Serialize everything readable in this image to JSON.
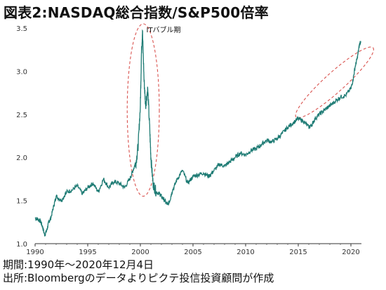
{
  "title": "図表2:NASDAQ総合指数/S&P500倍率",
  "footer": {
    "period": "期間:1990年～2020年12月4日",
    "source": "出所:Bloombergのデータよりピクテ投信投資顧問が作成"
  },
  "chart_data": {
    "type": "line",
    "title": "図表2:NASDAQ総合指数/S&P500倍率",
    "xlabel": "",
    "ylabel": "",
    "xlim": [
      1990,
      2021
    ],
    "ylim": [
      1.0,
      3.5
    ],
    "x_ticks": [
      1990,
      1995,
      2000,
      2005,
      2010,
      2015,
      2020
    ],
    "y_ticks": [
      1.0,
      1.5,
      2.0,
      2.5,
      3.0,
      3.5
    ],
    "y_tick_labels": [
      "1.0",
      "1.5",
      "2.0",
      "2.5",
      "3.0",
      "3.5"
    ],
    "grid": false,
    "line_color": "#1e7b74",
    "series": [
      {
        "x": [
          1990.0,
          1990.3,
          1990.5,
          1990.7,
          1990.9,
          1991.1,
          1991.3,
          1991.5,
          1991.8,
          1992.0,
          1992.5,
          1993.0,
          1993.5,
          1994.0,
          1994.5,
          1995.0,
          1995.5,
          1996.0,
          1996.5,
          1997.0,
          1997.5,
          1998.0,
          1998.5,
          1999.0,
          1999.3,
          1999.6,
          1999.8,
          2000.0,
          2000.1,
          2000.2,
          2000.35,
          2000.5,
          2000.7,
          2000.9,
          2001.0,
          2001.2,
          2001.5,
          2001.8,
          2002.0,
          2002.3,
          2002.6,
          2002.8,
          2003.0,
          2003.5,
          2004.0,
          2004.5,
          2005.0,
          2005.5,
          2006.0,
          2006.5,
          2007.0,
          2007.5,
          2008.0,
          2008.5,
          2009.0,
          2009.5,
          2010.0,
          2010.5,
          2011.0,
          2011.5,
          2012.0,
          2012.5,
          2013.0,
          2013.5,
          2014.0,
          2014.5,
          2015.0,
          2015.5,
          2016.0,
          2016.3,
          2016.6,
          2017.0,
          2017.5,
          2018.0,
          2018.5,
          2019.0,
          2019.5,
          2020.0,
          2020.2,
          2020.4,
          2020.6,
          2020.8,
          2020.93
        ],
        "y": [
          1.3,
          1.28,
          1.26,
          1.2,
          1.1,
          1.15,
          1.25,
          1.3,
          1.45,
          1.55,
          1.5,
          1.6,
          1.62,
          1.67,
          1.58,
          1.65,
          1.7,
          1.6,
          1.75,
          1.65,
          1.72,
          1.7,
          1.65,
          1.75,
          1.85,
          1.95,
          2.15,
          2.6,
          3.2,
          3.47,
          2.9,
          2.6,
          2.8,
          2.3,
          2.0,
          1.7,
          1.6,
          1.58,
          1.55,
          1.5,
          1.45,
          1.5,
          1.6,
          1.75,
          1.85,
          1.7,
          1.78,
          1.8,
          1.82,
          1.78,
          1.85,
          1.92,
          1.9,
          1.95,
          2.0,
          2.05,
          2.03,
          2.08,
          2.1,
          2.15,
          2.2,
          2.18,
          2.22,
          2.28,
          2.35,
          2.4,
          2.45,
          2.42,
          2.35,
          2.38,
          2.45,
          2.5,
          2.55,
          2.6,
          2.65,
          2.7,
          2.72,
          2.8,
          2.9,
          3.05,
          3.15,
          3.3,
          3.35
        ]
      }
    ],
    "annotations": [
      {
        "text": "ITバブル期",
        "x": 2000.3,
        "y": 3.45
      }
    ],
    "highlight_ellipses": [
      {
        "x_range": [
          1998.75,
          2001.8
        ],
        "y_range": [
          1.55,
          3.55
        ],
        "color": "#d9534f"
      },
      {
        "x_range": [
          2015.9,
          2021.0
        ],
        "y_range": [
          2.32,
          3.42
        ],
        "color": "#d9534f"
      }
    ]
  }
}
